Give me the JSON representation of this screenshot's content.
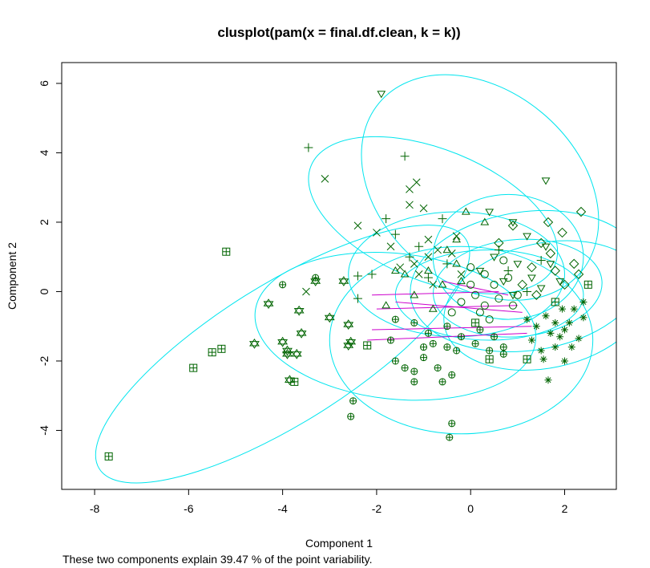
{
  "chart_data": {
    "type": "scatter",
    "title": "clusplot(pam(x = final.df.clean, k = k))",
    "subtitle": "These two components explain 39.47 % of the point variability.",
    "xlabel": "Component 1",
    "ylabel": "Component 2",
    "xlim": [
      -8.7,
      3.1
    ],
    "ylim": [
      -5.7,
      6.6
    ],
    "x_ticks": [
      -8,
      -6,
      -4,
      -2,
      0,
      2
    ],
    "x_tick_labels": [
      "-8",
      "-6",
      "-4",
      "-2",
      "0",
      "2"
    ],
    "y_ticks": [
      -4,
      -2,
      0,
      2,
      4,
      6
    ],
    "y_tick_labels": [
      "-4",
      "-2",
      "0",
      "2",
      "4",
      "6"
    ],
    "grid": false,
    "colors": {
      "points": "#006400",
      "ellipses": "#00e5ee",
      "links": "#cc00cc"
    },
    "ellipses": [
      {
        "cx": -4.0,
        "cy": -1.8,
        "rx": 4.6,
        "ry": 2.0,
        "angle": 32
      },
      {
        "cx": 0.2,
        "cy": 3.0,
        "rx": 2.8,
        "ry": 2.8,
        "angle": -40
      },
      {
        "cx": -0.8,
        "cy": 2.2,
        "rx": 2.8,
        "ry": 1.9,
        "angle": -22
      },
      {
        "cx": -1.6,
        "cy": -1.0,
        "rx": 3.0,
        "ry": 2.1,
        "angle": -6
      },
      {
        "cx": -0.2,
        "cy": -1.4,
        "rx": 2.8,
        "ry": 2.7,
        "angle": 0
      },
      {
        "cx": 1.2,
        "cy": 0.3,
        "rx": 2.5,
        "ry": 2.0,
        "angle": 8
      },
      {
        "cx": 1.6,
        "cy": -0.4,
        "rx": 2.2,
        "ry": 1.8,
        "angle": 12
      },
      {
        "cx": 0.8,
        "cy": 1.0,
        "rx": 1.6,
        "ry": 1.8,
        "angle": 0
      },
      {
        "cx": 1.0,
        "cy": 0.1,
        "rx": 1.8,
        "ry": 1.4,
        "angle": 5
      },
      {
        "cx": 0.4,
        "cy": -0.1,
        "rx": 2.0,
        "ry": 1.3,
        "angle": 0
      },
      {
        "cx": -0.3,
        "cy": 0.5,
        "rx": 2.3,
        "ry": 1.8,
        "angle": 0
      }
    ],
    "links": [
      {
        "x1": -2.1,
        "y1": -0.1,
        "x2": 0.6,
        "y2": 0.0
      },
      {
        "x1": -2.0,
        "y1": -0.5,
        "x2": 1.0,
        "y2": -0.4
      },
      {
        "x1": -2.1,
        "y1": -1.1,
        "x2": 1.3,
        "y2": -1.0
      },
      {
        "x1": -2.2,
        "y1": -1.4,
        "x2": 1.2,
        "y2": -1.2
      },
      {
        "x1": -1.6,
        "y1": -0.3,
        "x2": 1.1,
        "y2": -0.6
      },
      {
        "x1": -0.6,
        "y1": 0.3,
        "x2": 0.8,
        "y2": -0.1
      }
    ],
    "series": [
      {
        "symbol": "square-plus",
        "points": [
          [
            -7.7,
            -4.75
          ],
          [
            -5.9,
            -2.2
          ],
          [
            -5.5,
            -1.75
          ],
          [
            -5.3,
            -1.65
          ],
          [
            -5.2,
            1.15
          ],
          [
            -3.75,
            -2.6
          ],
          [
            -2.2,
            -1.55
          ],
          [
            0.4,
            -1.95
          ],
          [
            1.2,
            -1.95
          ],
          [
            2.5,
            0.2
          ],
          [
            1.8,
            -0.3
          ],
          [
            0.1,
            -0.9
          ]
        ]
      },
      {
        "symbol": "triangle-star",
        "points": [
          [
            -4.3,
            -0.35
          ],
          [
            -4.6,
            -1.5
          ],
          [
            -3.9,
            -1.7
          ],
          [
            -4.0,
            -1.45
          ],
          [
            -3.9,
            -1.8
          ],
          [
            -3.85,
            -2.55
          ],
          [
            -3.7,
            -1.8
          ],
          [
            -3.6,
            -1.2
          ],
          [
            -3.65,
            -0.55
          ],
          [
            -3.3,
            0.3
          ],
          [
            -3.0,
            -0.75
          ],
          [
            -2.7,
            0.3
          ],
          [
            -2.6,
            -1.55
          ],
          [
            -2.55,
            -1.45
          ],
          [
            -2.6,
            -0.95
          ]
        ]
      },
      {
        "symbol": "plus",
        "points": [
          [
            -3.45,
            4.15
          ],
          [
            -1.4,
            3.9
          ],
          [
            -2.1,
            0.5
          ],
          [
            -2.4,
            0.45
          ],
          [
            -2.4,
            -0.2
          ],
          [
            -1.8,
            2.1
          ],
          [
            -1.6,
            1.65
          ],
          [
            -1.3,
            1.0
          ],
          [
            -1.1,
            1.3
          ],
          [
            -0.5,
            0.8
          ],
          [
            -0.9,
            0.4
          ],
          [
            -0.6,
            2.1
          ],
          [
            0.6,
            1.2
          ],
          [
            0.8,
            0.6
          ],
          [
            1.2,
            0.0
          ],
          [
            1.5,
            0.9
          ]
        ]
      },
      {
        "symbol": "x",
        "points": [
          [
            -3.1,
            3.25
          ],
          [
            -1.3,
            2.95
          ],
          [
            -1.15,
            3.15
          ],
          [
            -1.3,
            2.5
          ],
          [
            -1.0,
            2.4
          ],
          [
            -2.4,
            1.9
          ],
          [
            -2.0,
            1.7
          ],
          [
            -1.7,
            1.3
          ],
          [
            -1.5,
            0.7
          ],
          [
            -1.2,
            0.8
          ],
          [
            -0.9,
            1.5
          ],
          [
            -1.1,
            0.5
          ],
          [
            -0.8,
            0.2
          ],
          [
            -0.4,
            1.1
          ],
          [
            -0.2,
            0.5
          ],
          [
            -0.7,
            1.2
          ],
          [
            -0.3,
            1.6
          ],
          [
            -0.9,
            1.0
          ],
          [
            -3.5,
            0.0
          ]
        ]
      },
      {
        "symbol": "triangle-down",
        "points": [
          [
            -1.9,
            5.7
          ],
          [
            1.6,
            3.2
          ],
          [
            0.4,
            2.3
          ],
          [
            0.9,
            2.0
          ],
          [
            1.2,
            1.6
          ],
          [
            1.6,
            1.3
          ],
          [
            0.5,
            1.0
          ],
          [
            1.0,
            0.8
          ],
          [
            1.3,
            0.4
          ],
          [
            0.7,
            0.3
          ],
          [
            1.5,
            0.1
          ],
          [
            0.2,
            0.6
          ],
          [
            0.9,
            -0.1
          ],
          [
            1.7,
            0.8
          ],
          [
            1.9,
            0.3
          ]
        ]
      },
      {
        "symbol": "triangle",
        "points": [
          [
            -0.1,
            2.3
          ],
          [
            -1.6,
            0.6
          ],
          [
            -1.4,
            0.5
          ],
          [
            -0.9,
            0.6
          ],
          [
            -0.6,
            0.2
          ],
          [
            -0.5,
            1.2
          ],
          [
            -0.3,
            1.5
          ],
          [
            -0.2,
            0.3
          ],
          [
            0.3,
            2.0
          ],
          [
            -1.8,
            -0.4
          ],
          [
            -1.2,
            -0.1
          ],
          [
            -0.8,
            -0.5
          ],
          [
            -0.3,
            0.8
          ]
        ]
      },
      {
        "symbol": "diamond",
        "points": [
          [
            2.35,
            2.3
          ],
          [
            1.65,
            2.0
          ],
          [
            1.95,
            1.7
          ],
          [
            2.2,
            0.8
          ],
          [
            2.0,
            0.2
          ],
          [
            1.7,
            1.1
          ],
          [
            1.5,
            1.4
          ],
          [
            1.3,
            0.7
          ],
          [
            1.1,
            0.2
          ],
          [
            1.8,
            0.6
          ],
          [
            1.4,
            -0.1
          ],
          [
            2.3,
            0.5
          ],
          [
            0.6,
            1.4
          ],
          [
            0.9,
            1.9
          ]
        ]
      },
      {
        "symbol": "circle",
        "points": [
          [
            0.0,
            0.7
          ],
          [
            0.3,
            0.5
          ],
          [
            0.5,
            0.2
          ],
          [
            0.6,
            -0.2
          ],
          [
            0.3,
            -0.4
          ],
          [
            0.1,
            -0.1
          ],
          [
            -0.2,
            -0.3
          ],
          [
            0.8,
            0.4
          ],
          [
            0.9,
            -0.4
          ],
          [
            0.4,
            -0.8
          ],
          [
            1.0,
            -0.1
          ],
          [
            -0.4,
            -0.6
          ],
          [
            0.0,
            0.2
          ],
          [
            0.7,
            0.9
          ],
          [
            0.2,
            -0.6
          ]
        ]
      },
      {
        "symbol": "circle-plus",
        "points": [
          [
            -4.0,
            0.2
          ],
          [
            -3.3,
            0.4
          ],
          [
            -2.5,
            -3.15
          ],
          [
            -2.55,
            -3.6
          ],
          [
            -0.4,
            -3.8
          ],
          [
            -0.45,
            -4.2
          ],
          [
            -1.6,
            -2.0
          ],
          [
            -1.4,
            -2.2
          ],
          [
            -1.2,
            -2.3
          ],
          [
            -1.2,
            -2.6
          ],
          [
            -0.7,
            -2.2
          ],
          [
            -1.0,
            -1.6
          ],
          [
            -0.8,
            -1.5
          ],
          [
            -0.5,
            -1.6
          ],
          [
            -0.3,
            -1.7
          ],
          [
            -0.6,
            -2.6
          ],
          [
            -0.4,
            -2.4
          ],
          [
            0.1,
            -1.5
          ],
          [
            0.4,
            -1.7
          ],
          [
            0.7,
            -1.6
          ],
          [
            0.7,
            -1.8
          ],
          [
            -1.6,
            -0.8
          ],
          [
            -1.2,
            -0.9
          ],
          [
            -0.9,
            -1.2
          ],
          [
            -0.5,
            -1.0
          ],
          [
            -0.2,
            -1.3
          ],
          [
            0.2,
            -1.1
          ],
          [
            0.5,
            -1.3
          ],
          [
            -1.7,
            -1.4
          ],
          [
            -1.0,
            -1.9
          ]
        ]
      },
      {
        "symbol": "asterisk",
        "points": [
          [
            2.4,
            -0.75
          ],
          [
            2.3,
            -1.35
          ],
          [
            2.0,
            -2.0
          ],
          [
            1.65,
            -2.55
          ],
          [
            1.8,
            -1.6
          ],
          [
            1.95,
            -0.5
          ],
          [
            2.4,
            -0.3
          ],
          [
            1.7,
            -1.2
          ],
          [
            1.5,
            -1.7
          ],
          [
            1.4,
            -1.0
          ],
          [
            1.9,
            -1.3
          ],
          [
            2.1,
            -0.9
          ],
          [
            1.3,
            -1.4
          ],
          [
            1.6,
            -0.7
          ],
          [
            2.2,
            -0.5
          ],
          [
            1.8,
            -0.9
          ],
          [
            2.0,
            -1.1
          ],
          [
            1.2,
            -0.8
          ],
          [
            1.55,
            -1.95
          ],
          [
            2.15,
            -1.6
          ]
        ]
      }
    ]
  }
}
